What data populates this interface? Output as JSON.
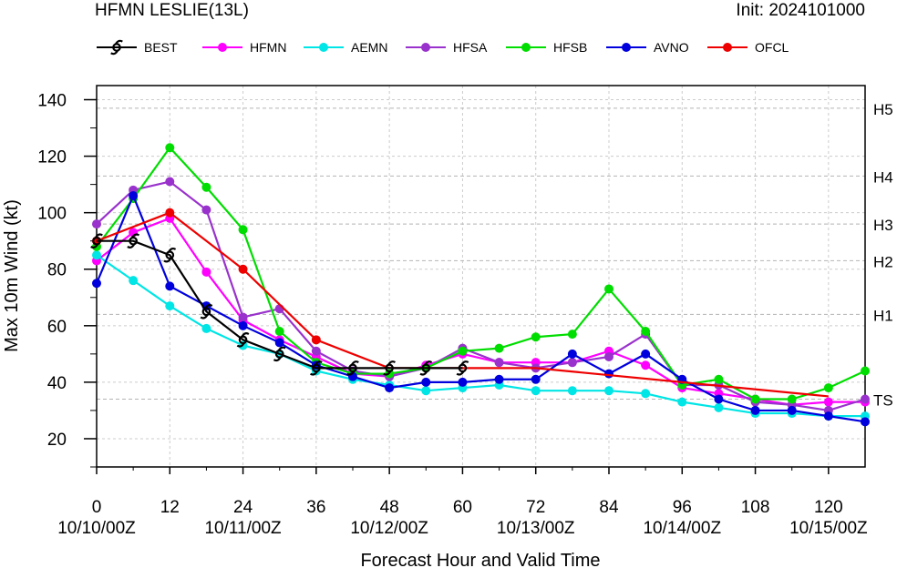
{
  "chart_data": {
    "type": "line",
    "title": "HFMN LESLIE(13L)",
    "init_label": "Init: 2024101000",
    "xlabel": "Forecast Hour and Valid Time",
    "ylabel": "Max 10m Wind (kt)",
    "xlim": [
      0,
      126
    ],
    "ylim": [
      10,
      145
    ],
    "x_ticks": [
      0,
      12,
      24,
      36,
      48,
      60,
      72,
      84,
      96,
      108,
      120
    ],
    "x_date_labels": [
      {
        "x": 0,
        "label": "10/10/00Z"
      },
      {
        "x": 24,
        "label": "10/11/00Z"
      },
      {
        "x": 48,
        "label": "10/12/00Z"
      },
      {
        "x": 72,
        "label": "10/13/00Z"
      },
      {
        "x": 96,
        "label": "10/14/00Z"
      },
      {
        "x": 120,
        "label": "10/15/00Z"
      }
    ],
    "y_ticks": [
      20,
      40,
      60,
      80,
      100,
      120,
      140
    ],
    "intensity_categories": [
      {
        "label": "TS",
        "value": 34
      },
      {
        "label": "H1",
        "value": 64
      },
      {
        "label": "H2",
        "value": 83
      },
      {
        "label": "H3",
        "value": 96
      },
      {
        "label": "H4",
        "value": 113
      },
      {
        "label": "H5",
        "value": 137
      }
    ],
    "grid": true,
    "legend_position": "top",
    "series": [
      {
        "name": "BEST",
        "color": "#000000",
        "marker": "hurricane",
        "x": [
          0,
          6,
          12,
          18,
          24,
          30,
          36,
          42,
          48,
          54,
          60
        ],
        "values": [
          90,
          90,
          85,
          65,
          55,
          50,
          45,
          45,
          45,
          45,
          45
        ]
      },
      {
        "name": "HFMN",
        "color": "#ff00ff",
        "marker": "circle",
        "x": [
          0,
          6,
          12,
          18,
          24,
          30,
          36,
          42,
          48,
          54,
          60,
          66,
          72,
          78,
          84,
          90,
          96,
          102,
          108,
          114,
          120,
          126
        ],
        "values": [
          83,
          93,
          98,
          79,
          62,
          55,
          49,
          43,
          42,
          46,
          50,
          47,
          47,
          47,
          51,
          46,
          38,
          36,
          34,
          32,
          33,
          33
        ]
      },
      {
        "name": "AEMN",
        "color": "#00e5e5",
        "marker": "circle",
        "x": [
          0,
          6,
          12,
          18,
          24,
          30,
          36,
          42,
          48,
          54,
          60,
          66,
          72,
          78,
          84,
          90,
          96,
          102,
          108,
          114,
          120,
          126
        ],
        "values": [
          85,
          76,
          67,
          59,
          53,
          50,
          44,
          41,
          39,
          37,
          38,
          39,
          37,
          37,
          37,
          36,
          33,
          31,
          29,
          29,
          28,
          28
        ]
      },
      {
        "name": "HFSA",
        "color": "#9932cc",
        "marker": "circle",
        "x": [
          0,
          6,
          12,
          18,
          24,
          30,
          36,
          42,
          48,
          54,
          60,
          66,
          72,
          78,
          84,
          90,
          96,
          102,
          108,
          114,
          120,
          126
        ],
        "values": [
          96,
          108,
          111,
          101,
          63,
          66,
          51,
          44,
          42,
          45,
          52,
          47,
          45,
          47,
          49,
          57,
          39,
          39,
          33,
          32,
          30,
          34
        ]
      },
      {
        "name": "HFSB",
        "color": "#00dd00",
        "marker": "circle",
        "x": [
          0,
          6,
          12,
          18,
          24,
          30,
          36,
          42,
          48,
          54,
          60,
          66,
          72,
          78,
          84,
          90,
          96,
          102,
          108,
          114,
          120,
          126
        ],
        "values": [
          88,
          105,
          123,
          109,
          94,
          58,
          47,
          43,
          43,
          45,
          51,
          52,
          56,
          57,
          73,
          58,
          39,
          41,
          34,
          34,
          38,
          44
        ]
      },
      {
        "name": "AVNO",
        "color": "#0000dd",
        "marker": "circle",
        "x": [
          0,
          6,
          12,
          18,
          24,
          30,
          36,
          42,
          48,
          54,
          60,
          66,
          72,
          78,
          84,
          90,
          96,
          102,
          108,
          114,
          120,
          126
        ],
        "values": [
          75,
          106,
          74,
          67,
          60,
          54,
          46,
          42,
          38,
          40,
          40,
          41,
          41,
          50,
          43,
          50,
          41,
          34,
          30,
          30,
          28,
          26
        ]
      },
      {
        "name": "OFCL",
        "color": "#ee0000",
        "marker": "circle",
        "x": [
          0,
          12,
          24,
          36,
          48,
          60,
          72,
          96,
          120
        ],
        "values": [
          90,
          100,
          80,
          55,
          45,
          45,
          45,
          40,
          35
        ],
        "marker_x": [
          0,
          12,
          24,
          36
        ]
      }
    ]
  }
}
